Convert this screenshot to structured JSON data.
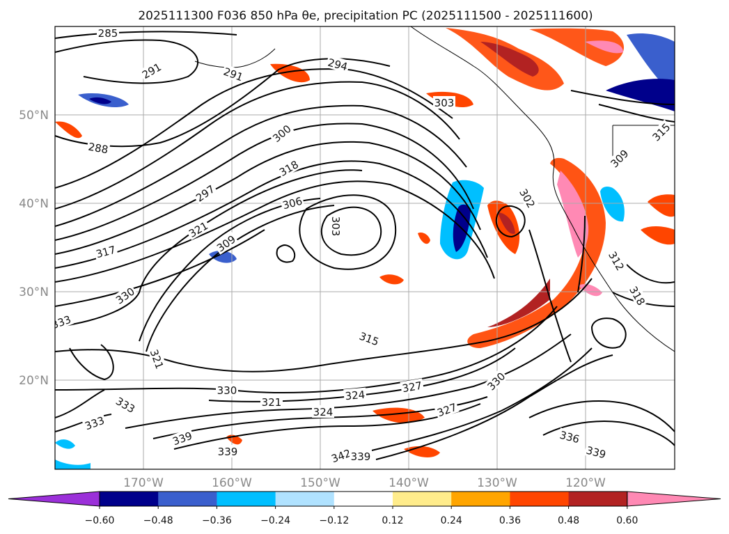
{
  "chart_data": {
    "type": "map",
    "title": "2025111300 F036 850 hPa θe, precipitation PC (2025111500 - 2025111600)",
    "lat_labels": [
      "50°N",
      "40°N",
      "30°N",
      "20°N"
    ],
    "lon_labels": [
      "170°W",
      "160°W",
      "150°W",
      "140°W",
      "130°W",
      "120°W"
    ],
    "grid": true,
    "contour_labels": [
      "285",
      "291",
      "291",
      "294",
      "303",
      "288",
      "300",
      "318",
      "297",
      "306",
      "303",
      "302",
      "321",
      "317",
      "309",
      "309",
      "330",
      "333",
      "321",
      "315",
      "327",
      "330",
      "330",
      "321",
      "324",
      "333",
      "333",
      "327",
      "324",
      "336",
      "339",
      "339",
      "339",
      "342",
      "339",
      "318",
      "312",
      "315"
    ],
    "colorbar": {
      "ticks": [
        "−0.60",
        "−0.48",
        "−0.36",
        "−0.24",
        "−0.12",
        "0.12",
        "0.24",
        "0.36",
        "0.48",
        "0.60"
      ],
      "colors": [
        "#9b30d9",
        "#00008b",
        "#3a5fcd",
        "#00bfff",
        "#b0e2ff",
        "#ffffff",
        "#ffec8b",
        "#ffa500",
        "#ff4500",
        "#b22222",
        "#ff89b4"
      ]
    }
  }
}
